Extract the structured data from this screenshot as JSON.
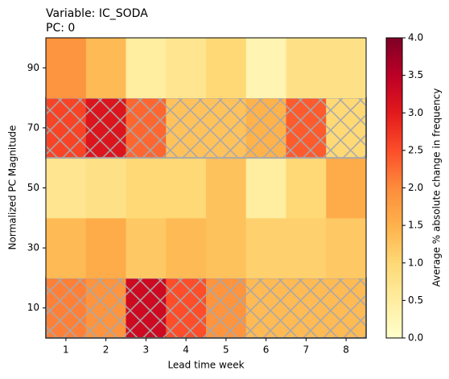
{
  "chart_data": {
    "type": "heatmap",
    "title": [
      "Variable: IC_SODA",
      "PC: 0"
    ],
    "x_label": "Lead time week",
    "y_label": "Normalized PC Magnitude",
    "colorbar_label": "Average % absolute change in frequency",
    "categories": [
      1,
      2,
      3,
      4,
      5,
      6,
      7,
      8
    ],
    "y_categories": [
      10,
      30,
      50,
      70,
      90
    ],
    "values": [
      [
        2.1,
        1.9,
        3.3,
        2.5,
        1.9,
        1.4,
        1.4,
        1.4
      ],
      [
        1.4,
        1.6,
        1.2,
        1.4,
        1.3,
        1.1,
        1.1,
        1.2
      ],
      [
        0.7,
        0.8,
        1.0,
        1.0,
        1.3,
        0.5,
        1.0,
        1.6
      ],
      [
        2.6,
        3.1,
        2.3,
        1.3,
        1.3,
        1.5,
        2.4,
        1.0
      ],
      [
        1.9,
        1.4,
        0.5,
        0.7,
        1.0,
        0.3,
        0.8,
        0.8
      ]
    ],
    "hatched": [
      true,
      false,
      false,
      true,
      false
    ],
    "colormap": [
      "#ffffcc",
      "#ffeda0",
      "#fed976",
      "#feb24c",
      "#fd8d3c",
      "#fc4e2a",
      "#e31a1c",
      "#bd0026",
      "#800026"
    ],
    "clim": [
      0,
      4
    ],
    "cticks": [
      {
        "value": 0,
        "label": "0.0"
      },
      {
        "value": 0.5,
        "label": "0.5"
      },
      {
        "value": 1,
        "label": "1.0"
      },
      {
        "value": 1.5,
        "label": "1.5"
      },
      {
        "value": 2,
        "label": "2.0"
      },
      {
        "value": 2.5,
        "label": "2.5"
      },
      {
        "value": 3,
        "label": "3.0"
      },
      {
        "value": 3.5,
        "label": "3.5"
      },
      {
        "value": 4,
        "label": "4.0"
      }
    ]
  }
}
